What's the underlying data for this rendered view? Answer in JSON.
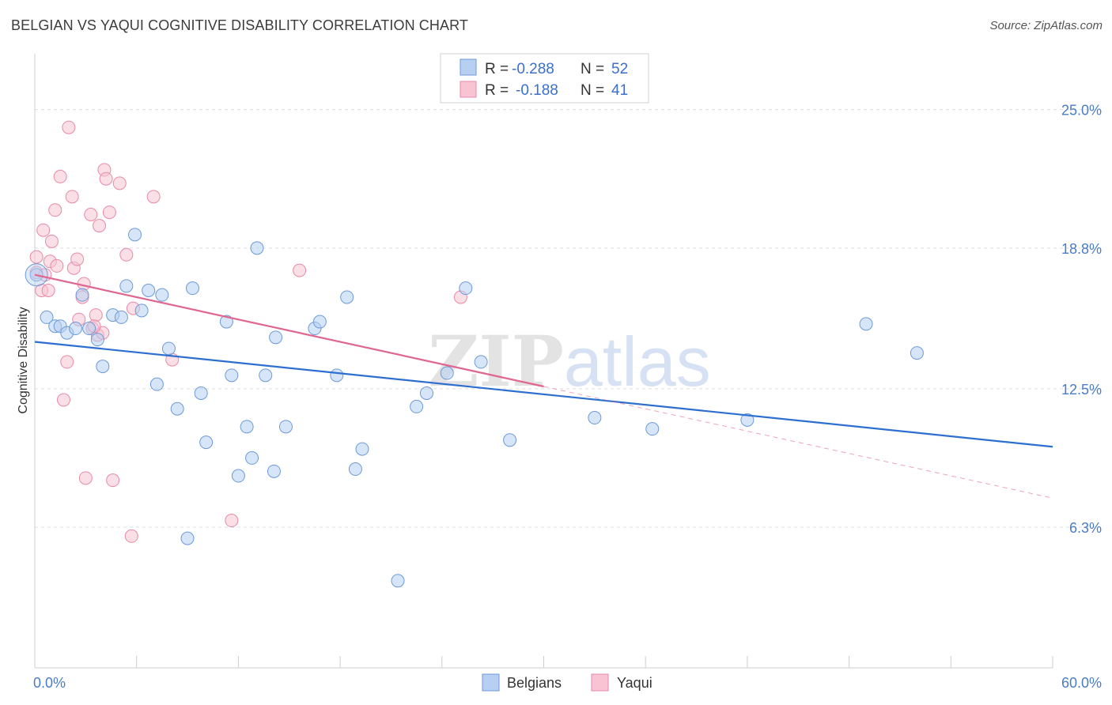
{
  "title": "BELGIAN VS YAQUI COGNITIVE DISABILITY CORRELATION CHART",
  "source": "Source: ZipAtlas.com",
  "watermark": "ZIPatlas",
  "colors": {
    "belgian_fill": "#b7d0f2",
    "belgian_stroke": "#6c9ad8",
    "belgian_line": "#2d6fd0",
    "yaqui_fill": "#f8c4d4",
    "yaqui_stroke": "#e68aa7",
    "yaqui_line": "#e0668f",
    "tick_text": "#4a7cc9",
    "grid": "#dddddd"
  },
  "legend": {
    "rows": [
      {
        "r_label": "R =",
        "r_value": "-0.288",
        "n_label": "N =",
        "n_value": "52"
      },
      {
        "r_label": "R =",
        "r_value": "-0.188",
        "n_label": "N =",
        "n_value": "41"
      }
    ]
  },
  "chart_data": {
    "type": "scatter",
    "title": "BELGIAN VS YAQUI COGNITIVE DISABILITY CORRELATION CHART",
    "xlabel": "",
    "ylabel": "Cognitive Disability",
    "xlim": [
      0,
      60
    ],
    "ylim": [
      0,
      27.5
    ],
    "x_tick_labels": [
      {
        "value": 0,
        "label": "0.0%"
      },
      {
        "value": 60,
        "label": "60.0%"
      }
    ],
    "y_ticks": [
      {
        "value": 6.3,
        "label": "6.3%"
      },
      {
        "value": 12.5,
        "label": "12.5%"
      },
      {
        "value": 18.8,
        "label": "18.8%"
      },
      {
        "value": 25.0,
        "label": "25.0%"
      }
    ],
    "series": [
      {
        "name": "Belgians",
        "r": -0.288,
        "n": 52,
        "trend": {
          "x0": 0,
          "y0": 14.6,
          "x1": 60,
          "y1": 9.9
        },
        "points": [
          [
            0.1,
            17.6
          ],
          [
            0.7,
            15.7
          ],
          [
            1.2,
            15.3
          ],
          [
            1.5,
            15.3
          ],
          [
            1.9,
            15.0
          ],
          [
            2.4,
            15.2
          ],
          [
            2.8,
            16.7
          ],
          [
            3.2,
            15.2
          ],
          [
            3.7,
            14.7
          ],
          [
            4.0,
            13.5
          ],
          [
            4.6,
            15.8
          ],
          [
            5.1,
            15.7
          ],
          [
            5.4,
            17.1
          ],
          [
            5.9,
            19.4
          ],
          [
            6.3,
            16.0
          ],
          [
            6.7,
            16.9
          ],
          [
            7.2,
            12.7
          ],
          [
            7.5,
            16.7
          ],
          [
            7.9,
            14.3
          ],
          [
            8.4,
            11.6
          ],
          [
            9.0,
            5.8
          ],
          [
            9.3,
            17.0
          ],
          [
            9.8,
            12.3
          ],
          [
            10.1,
            10.1
          ],
          [
            11.3,
            15.5
          ],
          [
            11.6,
            13.1
          ],
          [
            12.0,
            8.6
          ],
          [
            12.5,
            10.8
          ],
          [
            12.8,
            9.4
          ],
          [
            13.1,
            18.8
          ],
          [
            13.6,
            13.1
          ],
          [
            14.1,
            8.8
          ],
          [
            14.2,
            14.8
          ],
          [
            14.8,
            10.8
          ],
          [
            16.5,
            15.2
          ],
          [
            16.8,
            15.5
          ],
          [
            17.8,
            13.1
          ],
          [
            18.4,
            16.6
          ],
          [
            18.9,
            8.9
          ],
          [
            19.3,
            9.8
          ],
          [
            21.4,
            3.9
          ],
          [
            22.5,
            11.7
          ],
          [
            23.1,
            12.3
          ],
          [
            24.3,
            13.2
          ],
          [
            25.4,
            17.0
          ],
          [
            26.3,
            13.7
          ],
          [
            28.0,
            10.2
          ],
          [
            33.0,
            11.2
          ],
          [
            36.4,
            10.7
          ],
          [
            42.0,
            11.1
          ],
          [
            49.0,
            15.4
          ],
          [
            52.0,
            14.1
          ]
        ]
      },
      {
        "name": "Yaqui",
        "r": -0.188,
        "n": 41,
        "trend": {
          "x0": 0,
          "y0": 17.6,
          "x1": 30,
          "y1": 12.6
        },
        "trend_extension": {
          "x0": 30,
          "y0": 12.6,
          "x1": 60,
          "y1": 7.6
        },
        "points": [
          [
            0.1,
            18.4
          ],
          [
            0.1,
            17.7
          ],
          [
            0.4,
            16.9
          ],
          [
            0.5,
            19.6
          ],
          [
            0.6,
            17.6
          ],
          [
            0.8,
            16.9
          ],
          [
            0.9,
            18.2
          ],
          [
            1.0,
            19.1
          ],
          [
            1.2,
            20.5
          ],
          [
            1.3,
            18.0
          ],
          [
            1.5,
            22.0
          ],
          [
            1.7,
            12.0
          ],
          [
            1.9,
            13.7
          ],
          [
            2.0,
            24.2
          ],
          [
            2.2,
            21.1
          ],
          [
            2.3,
            17.9
          ],
          [
            2.5,
            18.3
          ],
          [
            2.6,
            15.6
          ],
          [
            2.8,
            16.6
          ],
          [
            2.9,
            17.2
          ],
          [
            3.0,
            8.5
          ],
          [
            3.3,
            20.3
          ],
          [
            3.4,
            15.2
          ],
          [
            3.6,
            15.8
          ],
          [
            3.7,
            14.9
          ],
          [
            3.8,
            19.8
          ],
          [
            4.0,
            15.0
          ],
          [
            4.1,
            22.3
          ],
          [
            4.2,
            21.9
          ],
          [
            4.4,
            20.4
          ],
          [
            4.6,
            8.4
          ],
          [
            5.0,
            21.7
          ],
          [
            5.4,
            18.5
          ],
          [
            5.7,
            5.9
          ],
          [
            5.8,
            16.1
          ],
          [
            7.0,
            21.1
          ],
          [
            8.1,
            13.8
          ],
          [
            11.6,
            6.6
          ],
          [
            15.6,
            17.8
          ],
          [
            25.1,
            16.6
          ],
          [
            3.5,
            15.3
          ]
        ]
      }
    ]
  }
}
